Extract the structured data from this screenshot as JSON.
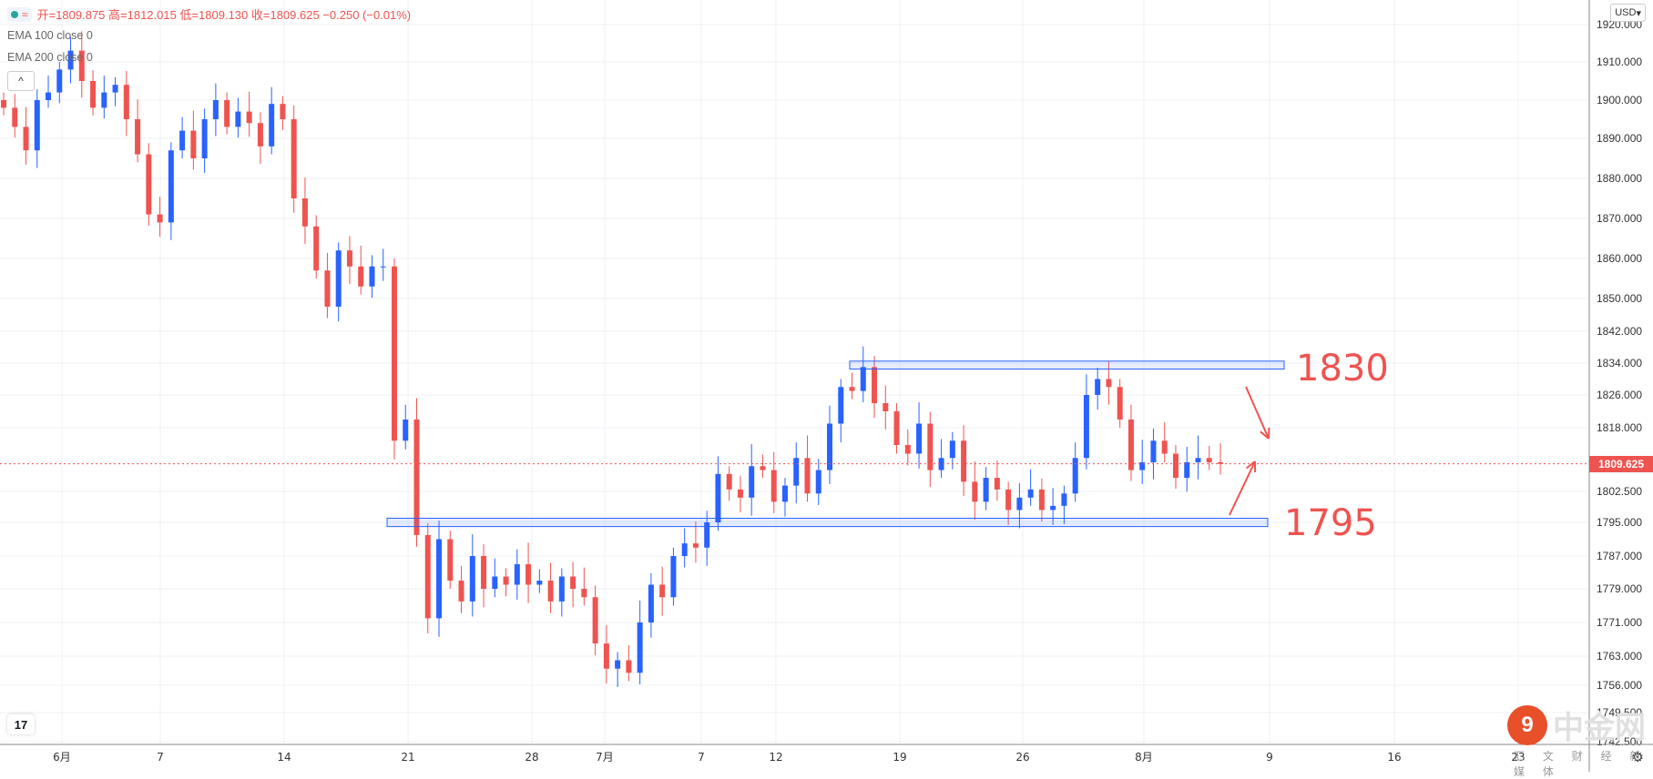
{
  "header": {
    "ohlc": "开=1809.875 高=1812.015 低=1809.130 收=1809.625 −0.250 (−0.01%)",
    "indicators": [
      "EMA 100 close 0",
      "EMA 200 close 0"
    ],
    "collapse_icon": "chevron-up-icon",
    "currency": "USD"
  },
  "last_price_label": "1809.625",
  "annotations": {
    "resistance_label": "1830",
    "support_label": "1795"
  },
  "watermark": {
    "brand": "中金网",
    "sub": "汇 文 财 经 新 媒 体"
  },
  "colors": {
    "up": "#2962ff",
    "down": "#ef5350",
    "grid": "#eef1f5",
    "annotation": "#ef5350",
    "zone_border": "#2962ff"
  },
  "chart_data": {
    "type": "candlestick",
    "y_axis_ticks": [
      "1920.000",
      "1910.000",
      "1900.000",
      "1890.000",
      "1880.000",
      "1870.000",
      "1860.000",
      "1850.000",
      "1842.000",
      "1834.000",
      "1826.000",
      "1818.000",
      "1810.000",
      "1802.500",
      "1795.000",
      "1787.000",
      "1779.000",
      "1771.000",
      "1763.000",
      "1756.000",
      "1749.500",
      "1742.500"
    ],
    "x_axis_ticks": [
      "6月",
      "7",
      "14",
      "21",
      "28",
      "7月",
      "7",
      "12",
      "19",
      "26",
      "8月",
      "9",
      "16",
      "23"
    ],
    "last_price": 1809.625,
    "zones": [
      {
        "label": "1830",
        "low": 1832.5,
        "high": 1834.5
      },
      {
        "label": "1795",
        "low": 1794.0,
        "high": 1796.0
      }
    ],
    "closes": [
      1898,
      1893,
      1887,
      1900,
      1902,
      1908,
      1913,
      1905,
      1898,
      1902,
      1904,
      1895,
      1886,
      1871,
      1869,
      1887,
      1892,
      1885,
      1895,
      1900,
      1893,
      1897,
      1894,
      1888,
      1899,
      1895,
      1875,
      1868,
      1857,
      1848,
      1862,
      1858,
      1853,
      1858,
      1858,
      1815,
      1820,
      1792,
      1772,
      1791,
      1781,
      1776,
      1787,
      1779,
      1782,
      1780,
      1785,
      1780,
      1781,
      1776,
      1782,
      1779,
      1777,
      1766,
      1760,
      1762,
      1759,
      1771,
      1780,
      1777,
      1787,
      1790,
      1789,
      1795,
      1807,
      1803,
      1801,
      1809,
      1808,
      1800,
      1804,
      1811,
      1802,
      1808,
      1819,
      1828,
      1827,
      1833,
      1824,
      1822,
      1814,
      1812,
      1819,
      1808,
      1811,
      1815,
      1805,
      1800,
      1806,
      1803,
      1798,
      1801,
      1803,
      1798,
      1799,
      1802,
      1811,
      1826,
      1830,
      1828,
      1820,
      1808,
      1810,
      1815,
      1812,
      1806,
      1810,
      1811,
      1810,
      1809.6
    ]
  }
}
